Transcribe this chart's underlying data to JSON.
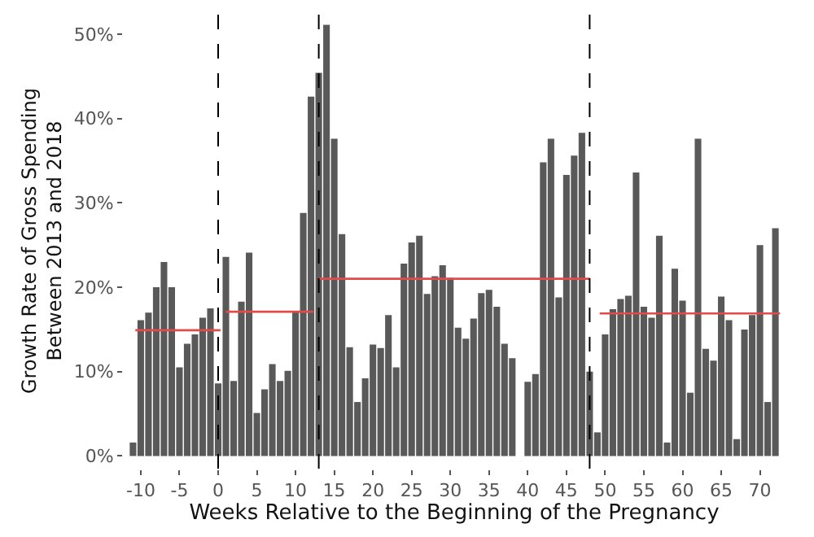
{
  "chart_data": {
    "type": "bar",
    "xlabel": "Weeks Relative to the Beginning of the Pregnancy",
    "ylabel": "Growth Rate of Gross Spending\nBetween 2013 and 2018",
    "x": [
      -11,
      -10,
      -9,
      -8,
      -7,
      -6,
      -5,
      -4,
      -3,
      -2,
      -1,
      0,
      1,
      2,
      3,
      4,
      5,
      6,
      7,
      8,
      9,
      10,
      11,
      12,
      13,
      14,
      15,
      16,
      17,
      18,
      19,
      20,
      21,
      22,
      23,
      24,
      25,
      26,
      27,
      28,
      29,
      30,
      31,
      32,
      33,
      34,
      35,
      36,
      37,
      38,
      39,
      40,
      41,
      42,
      43,
      44,
      45,
      46,
      47,
      48,
      49,
      50,
      51,
      52,
      53,
      54,
      55,
      56,
      57,
      58,
      59,
      60,
      61,
      62,
      63,
      64,
      65,
      66,
      67,
      68,
      69,
      70,
      71,
      72
    ],
    "series": [
      {
        "color": "#595959",
        "values": [
          1.6,
          16.1,
          17.0,
          20.0,
          23.0,
          20.0,
          10.5,
          13.3,
          14.4,
          16.4,
          17.5,
          8.6,
          23.6,
          8.9,
          18.3,
          24.1,
          5.1,
          7.9,
          10.9,
          8.9,
          10.1,
          17.1,
          28.8,
          42.6,
          45.4,
          51.1,
          37.6,
          26.3,
          12.9,
          6.4,
          9.2,
          13.2,
          12.8,
          16.7,
          10.5,
          22.8,
          25.3,
          26.1,
          19.2,
          21.3,
          22.6,
          21.1,
          15.2,
          13.9,
          16.3,
          19.3,
          19.7,
          17.7,
          13.3,
          11.6,
          0,
          8.8,
          9.7,
          34.8,
          37.6,
          18.8,
          33.3,
          35.6,
          38.3,
          10.0,
          2.8,
          14.4,
          17.4,
          18.6,
          19.0,
          33.6,
          17.7,
          16.4,
          26.1,
          1.6,
          22.2,
          18.4,
          7.5,
          37.6,
          12.7,
          11.3,
          18.9,
          16.1,
          2.0,
          15.0,
          16.7,
          25.0,
          6.4,
          27.0
        ]
      },
      {
        "type": "line",
        "color": "#e34a4a",
        "x": [
          -10.7,
          0.3
        ],
        "values": [
          14.9,
          14.9
        ]
      },
      {
        "type": "line",
        "color": "#e34a4a",
        "x": [
          1,
          12.3
        ],
        "values": [
          17.1,
          17.1
        ]
      },
      {
        "type": "line",
        "color": "#e34a4a",
        "x": [
          13,
          48
        ],
        "values": [
          21.0,
          21.0
        ]
      },
      {
        "type": "line",
        "color": "#e34a4a",
        "x": [
          49.3,
          72.6
        ],
        "values": [
          16.9,
          16.9
        ]
      }
    ],
    "ref_lines": [
      {
        "axis": "x",
        "value": 0,
        "color": "#000000",
        "line_style": "dashed"
      },
      {
        "axis": "x",
        "value": 13,
        "color": "#000000",
        "line_style": "dashed"
      },
      {
        "axis": "x",
        "value": 48,
        "color": "#000000",
        "line_style": "dashed"
      }
    ],
    "xlim": [
      -12.2,
      73.2
    ],
    "xticks": [
      -10,
      -5,
      0,
      5,
      10,
      15,
      20,
      25,
      30,
      35,
      40,
      45,
      50,
      55,
      60,
      65,
      70
    ],
    "ylim": [
      -1.5,
      52.5
    ],
    "yticks": [
      {
        "value": 0,
        "label": "0%"
      },
      {
        "value": 10,
        "label": "10%"
      },
      {
        "value": 20,
        "label": "20%"
      },
      {
        "value": 30,
        "label": "30%"
      },
      {
        "value": 40,
        "label": "40%"
      },
      {
        "value": 50,
        "label": "50%"
      }
    ],
    "grid": false,
    "marker": "none"
  }
}
